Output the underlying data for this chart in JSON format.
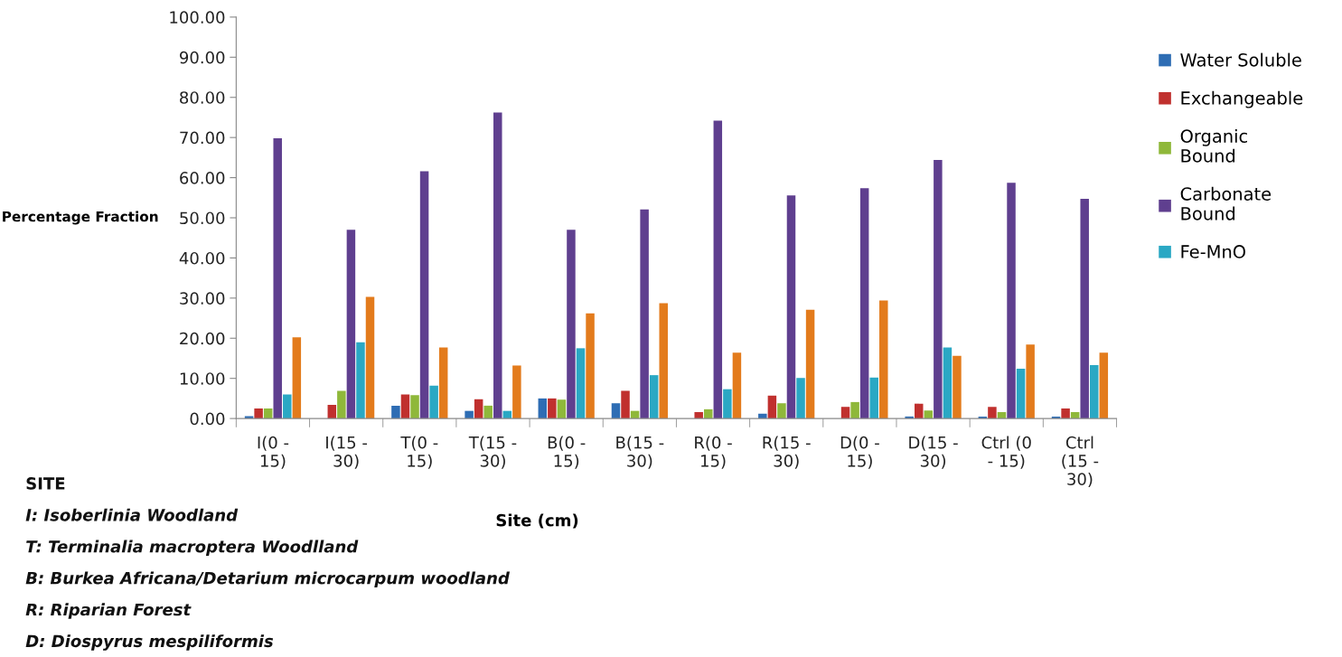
{
  "chart_data": {
    "type": "bar",
    "ylabel": "Percentage Fraction",
    "xlabel": "Site (cm)",
    "categories": [
      "I(0 - 15)",
      "I(15 - 30)",
      "T(0 - 15)",
      "T(15 - 30)",
      "B(0 - 15)",
      "B(15 - 30)",
      "R(0 - 15)",
      "R(15 - 30)",
      "D(0 - 15)",
      "D(15 - 30)",
      "Ctrl (0 - 15)",
      "Ctrl (15 - 30)"
    ],
    "series": [
      {
        "name": "Water Soluble",
        "color": "#2e6db4",
        "values": [
          0.6,
          0,
          3.2,
          1.9,
          5.0,
          3.8,
          0,
          1.2,
          0,
          0.5,
          0.5,
          0.5
        ]
      },
      {
        "name": "Exchangeable",
        "color": "#c0302e",
        "values": [
          2.5,
          3.4,
          6.0,
          4.8,
          5.0,
          6.9,
          1.6,
          5.7,
          2.9,
          3.7,
          2.9,
          2.5
        ]
      },
      {
        "name": "Organic Bound",
        "color": "#8fb83a",
        "values": [
          2.5,
          6.9,
          5.8,
          3.2,
          4.7,
          1.9,
          2.3,
          3.8,
          4.1,
          2.0,
          1.6,
          1.6
        ]
      },
      {
        "name": "Carbonate Bound",
        "color": "#5f3f8f",
        "values": [
          69.8,
          47.0,
          61.6,
          76.2,
          47.0,
          52.1,
          74.2,
          55.6,
          57.4,
          64.4,
          58.7,
          54.7
        ]
      },
      {
        "name": "Fe-MnO",
        "color": "#2aa8c4",
        "values": [
          6.0,
          19.0,
          8.2,
          1.9,
          17.5,
          10.8,
          7.3,
          10.1,
          10.2,
          17.7,
          12.4,
          13.3
        ]
      },
      {
        "color": "#e37b1c",
        "values": [
          20.2,
          30.3,
          17.7,
          13.2,
          26.2,
          28.7,
          16.4,
          27.1,
          29.4,
          15.6,
          18.4,
          16.4
        ]
      }
    ],
    "ylim": [
      0,
      100
    ],
    "yticks": [
      {
        "value": 0,
        "label": "0.00"
      },
      {
        "value": 10,
        "label": "10.00"
      },
      {
        "value": 20,
        "label": "20.00"
      },
      {
        "value": 30,
        "label": "30.00"
      },
      {
        "value": 40,
        "label": "40.00"
      },
      {
        "value": 50,
        "label": "50.00"
      },
      {
        "value": 60,
        "label": "60.00"
      },
      {
        "value": 70,
        "label": "70.00"
      },
      {
        "value": 80,
        "label": "80.00"
      },
      {
        "value": 90,
        "label": "90.00"
      },
      {
        "value": 100,
        "label": "100.00"
      }
    ],
    "legend": "right",
    "annotations": [
      "SITE",
      "I: Isoberlinia Woodland",
      "T: Terminalia macroptera Woodlland",
      "B: Burkea Africana/Detarium microcarpum woodland",
      "R: Riparian Forest",
      "D: Diospyrus mespiliformis"
    ]
  }
}
